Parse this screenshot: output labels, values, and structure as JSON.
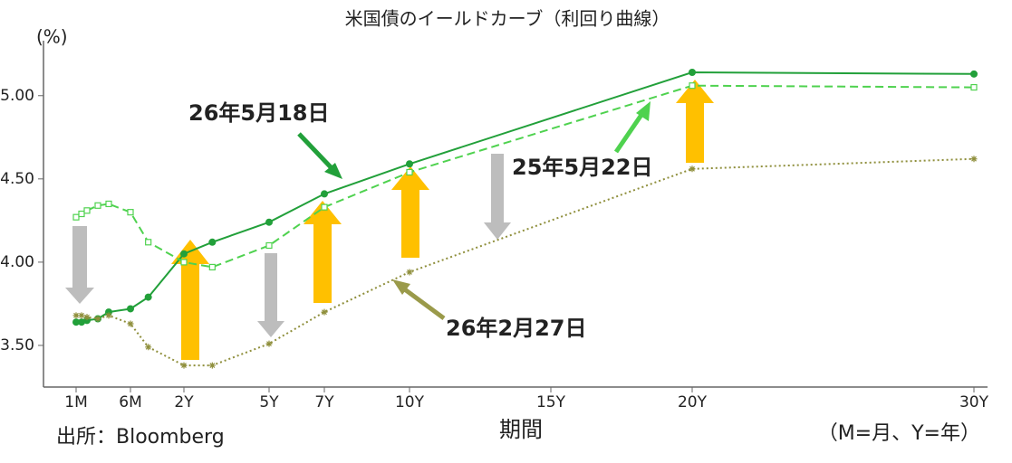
{
  "chart_data": {
    "type": "line",
    "title": "米国債のイールドカーブ（利回り曲線）",
    "y_label": "(%)",
    "x_label": "期間",
    "source": "出所：Bloomberg",
    "note": "（M=月、Y=年）",
    "x": [
      0.0833,
      0.125,
      0.1667,
      0.25,
      0.3333,
      0.5,
      1,
      2,
      3,
      5,
      7,
      10,
      20,
      30
    ],
    "xticks": [
      {
        "value": 0.0833,
        "label": "1M"
      },
      {
        "value": 0.5,
        "label": "6M"
      },
      {
        "value": 2,
        "label": "2Y"
      },
      {
        "value": 5,
        "label": "5Y"
      },
      {
        "value": 7,
        "label": "7Y"
      },
      {
        "value": 10,
        "label": "10Y"
      },
      {
        "value": 15,
        "label": "15Y"
      },
      {
        "value": 20,
        "label": "20Y"
      },
      {
        "value": 30,
        "label": "30Y"
      }
    ],
    "ylim": [
      3.25,
      5.33
    ],
    "yticks": [
      {
        "value": 3.5,
        "label": "3.50"
      },
      {
        "value": 4,
        "label": "4.00"
      },
      {
        "value": 4.5,
        "label": "4.50"
      },
      {
        "value": 5,
        "label": "5.00"
      }
    ],
    "series": [
      {
        "name": "26年5月18日",
        "color": "#22a03a",
        "dash": "solid",
        "marker": "circle",
        "values": [
          3.64,
          3.64,
          3.65,
          3.66,
          3.7,
          3.72,
          3.79,
          4.05,
          4.12,
          4.24,
          4.41,
          4.59,
          5.14,
          5.13
        ]
      },
      {
        "name": "25年5月22日",
        "color": "#4fd24f",
        "dash": "dashed",
        "marker": "square",
        "values": [
          4.27,
          4.29,
          4.31,
          4.34,
          4.35,
          4.3,
          4.12,
          4.0,
          3.97,
          4.1,
          4.33,
          4.54,
          5.06,
          5.05
        ]
      },
      {
        "name": "26年2月27日",
        "color": "#8f8f3c",
        "dash": "dotted",
        "marker": "star",
        "values": [
          3.68,
          3.68,
          3.67,
          3.66,
          3.68,
          3.63,
          3.49,
          3.38,
          3.38,
          3.51,
          3.7,
          3.94,
          4.56,
          4.62
        ]
      }
    ]
  }
}
